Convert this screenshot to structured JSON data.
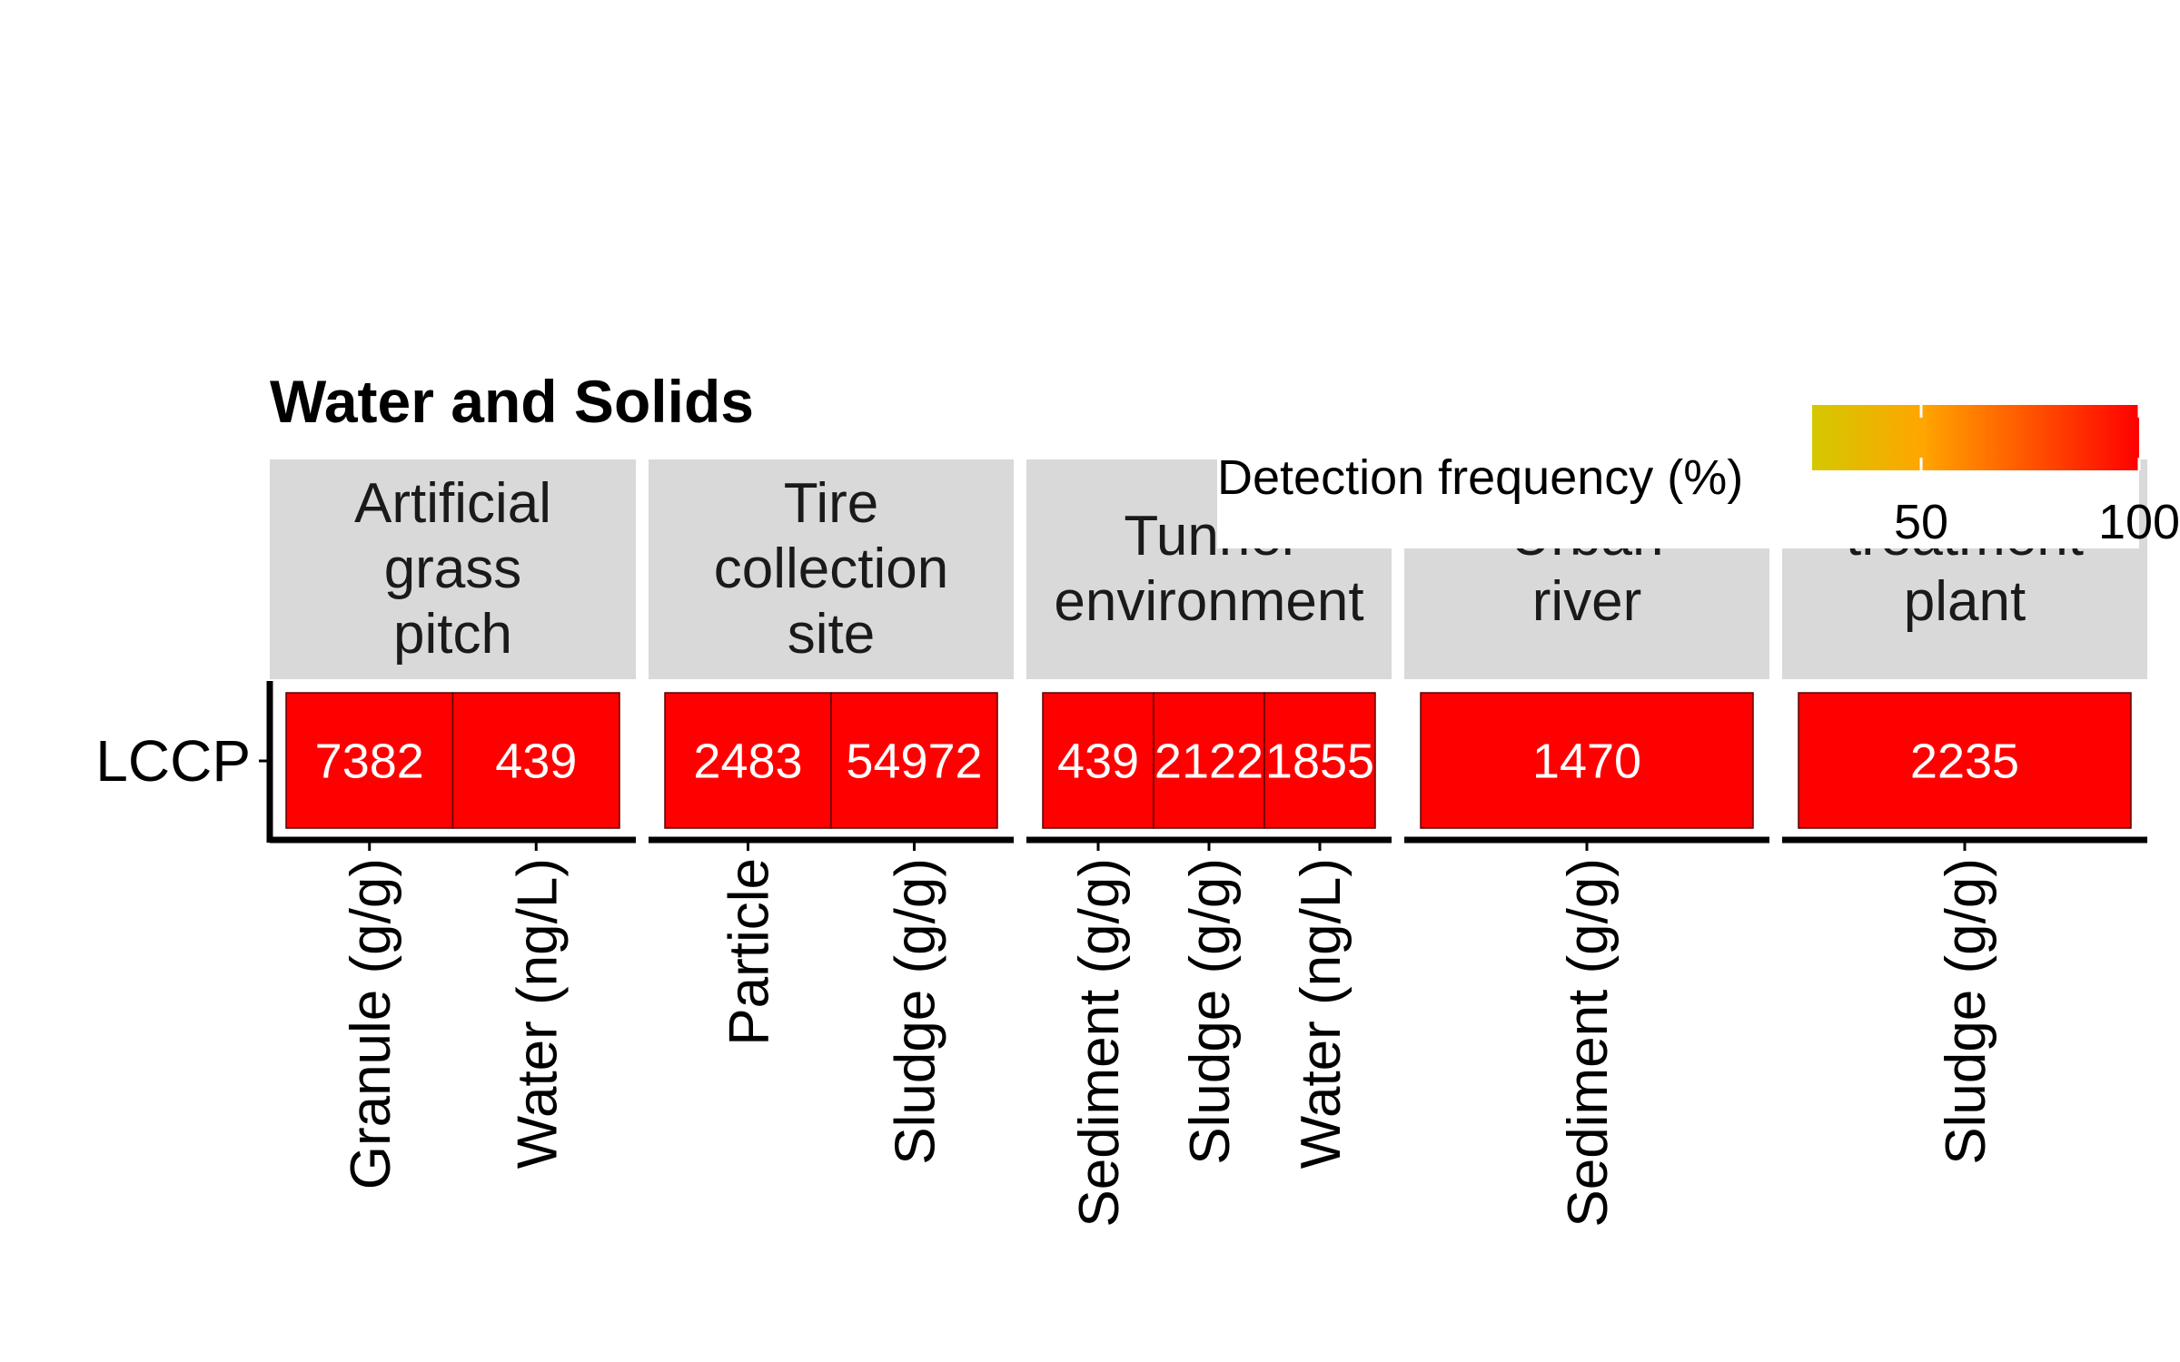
{
  "chart_data": {
    "type": "heatmap",
    "title": "Water and Solids",
    "row_labels": [
      "LCCP"
    ],
    "facets": [
      {
        "label_lines": [
          "Artificial",
          "grass",
          "pitch"
        ],
        "cells": [
          {
            "x": "Granule (g/g)",
            "value": 7382,
            "frequency": 100
          },
          {
            "x": "Water (ng/L)",
            "value": 439,
            "frequency": 100
          }
        ]
      },
      {
        "label_lines": [
          "Tire",
          "collection",
          "site"
        ],
        "cells": [
          {
            "x": "Particle",
            "value": 2483,
            "frequency": 100
          },
          {
            "x": "Sludge (g/g)",
            "value": 54972,
            "frequency": 100
          }
        ]
      },
      {
        "label_lines": [
          "Tunnel",
          "environment"
        ],
        "cells": [
          {
            "x": "Sediment (g/g)",
            "value": 439,
            "frequency": 100
          },
          {
            "x": "Sludge (g/g)",
            "value": 2122,
            "frequency": 100
          },
          {
            "x": "Water (ng/L)",
            "value": 1855,
            "frequency": 100
          }
        ]
      },
      {
        "label_lines": [
          "Urban",
          "river"
        ],
        "cells": [
          {
            "x": "Sediment (g/g)",
            "value": 1470,
            "frequency": 100
          }
        ]
      },
      {
        "label_lines": [
          "treatment",
          "plant"
        ],
        "cells": [
          {
            "x": "Sludge (g/g)",
            "value": 2235,
            "frequency": 100
          }
        ]
      }
    ],
    "legend": {
      "title": "Detection frequency (%)",
      "tick_labels": [
        "50",
        "100"
      ],
      "ticks": [
        50,
        100
      ],
      "range": [
        25,
        100
      ],
      "colors": [
        "#d4c800",
        "#ffa500",
        "#ff0000"
      ],
      "placement": "top-right"
    },
    "cell_color": "#ff0000",
    "value_label_color": "#ffffff"
  }
}
